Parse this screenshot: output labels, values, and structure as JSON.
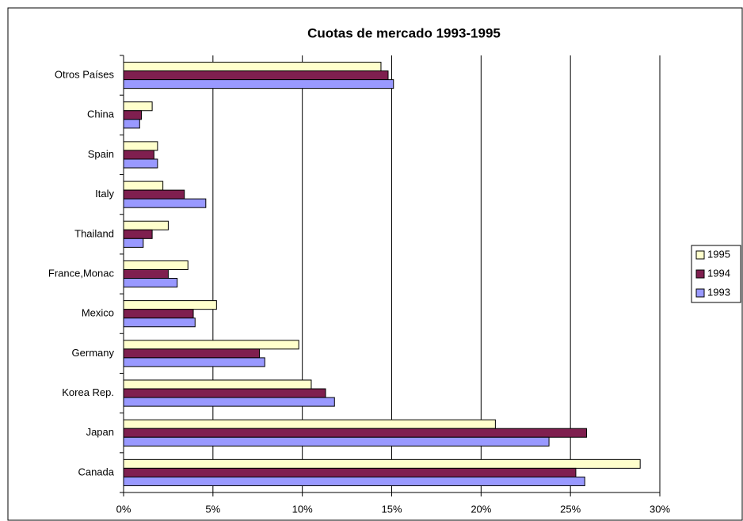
{
  "chart_data": {
    "type": "hbar",
    "title": "Cuotas de mercado 1993-1995",
    "categories": [
      "Canada",
      "Japan",
      "Korea Rep.",
      "Germany",
      "Mexico",
      "France,Monac",
      "Thailand",
      "Italy",
      "Spain",
      "China",
      "Otros Países"
    ],
    "series": [
      {
        "name": "1995",
        "color": "#ffffcc",
        "values": [
          28.9,
          20.8,
          10.5,
          9.8,
          5.2,
          3.6,
          2.5,
          2.2,
          1.9,
          1.6,
          14.4
        ]
      },
      {
        "name": "1994",
        "color": "#7f1f4f",
        "values": [
          25.3,
          25.9,
          11.3,
          7.6,
          3.9,
          2.5,
          1.6,
          3.4,
          1.7,
          1.0,
          14.8
        ]
      },
      {
        "name": "1993",
        "color": "#9999ff",
        "values": [
          25.8,
          23.8,
          11.8,
          7.9,
          4.0,
          3.0,
          1.1,
          4.6,
          1.9,
          0.9,
          15.1
        ]
      }
    ],
    "xlim": [
      0,
      30
    ],
    "xticks": [
      {
        "value": 0,
        "label": "0%"
      },
      {
        "value": 5,
        "label": "5%"
      },
      {
        "value": 10,
        "label": "10%"
      },
      {
        "value": 15,
        "label": "15%"
      },
      {
        "value": 20,
        "label": "20%"
      },
      {
        "value": 25,
        "label": "25%"
      },
      {
        "value": 30,
        "label": "30%"
      }
    ],
    "grid": true,
    "legend": "right"
  }
}
